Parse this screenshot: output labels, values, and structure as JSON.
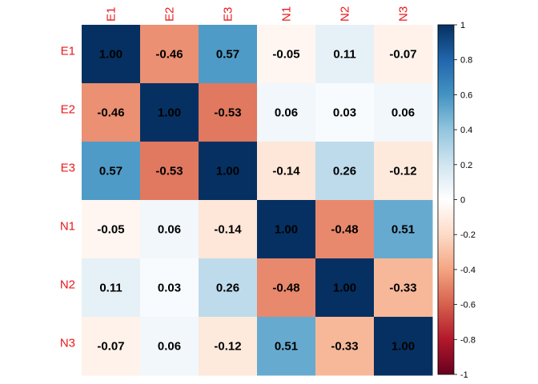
{
  "chart_data": {
    "type": "heatmap",
    "title": "",
    "variables": [
      "E1",
      "E2",
      "E3",
      "N1",
      "N2",
      "N3"
    ],
    "rows": [
      "E1",
      "E2",
      "E3",
      "N1",
      "N2",
      "N3"
    ],
    "columns": [
      "E1",
      "E2",
      "E3",
      "N1",
      "N2",
      "N3"
    ],
    "values": [
      [
        1.0,
        -0.46,
        0.57,
        -0.05,
        0.11,
        -0.07
      ],
      [
        -0.46,
        1.0,
        -0.53,
        0.06,
        0.03,
        0.06
      ],
      [
        0.57,
        -0.53,
        1.0,
        -0.14,
        0.26,
        -0.12
      ],
      [
        -0.05,
        0.06,
        -0.14,
        1.0,
        -0.48,
        0.51
      ],
      [
        0.11,
        0.03,
        0.26,
        -0.48,
        1.0,
        -0.33
      ],
      [
        -0.07,
        0.06,
        -0.12,
        0.51,
        -0.33,
        1.0
      ]
    ],
    "value_labels": [
      [
        "1.00",
        "-0.46",
        "0.57",
        "-0.05",
        "0.11",
        "-0.07"
      ],
      [
        "-0.46",
        "1.00",
        "-0.53",
        "0.06",
        "0.03",
        "0.06"
      ],
      [
        "0.57",
        "-0.53",
        "1.00",
        "-0.14",
        "0.26",
        "-0.12"
      ],
      [
        "-0.05",
        "0.06",
        "-0.14",
        "1.00",
        "-0.48",
        "0.51"
      ],
      [
        "0.11",
        "0.03",
        "0.26",
        "-0.48",
        "1.00",
        "-0.33"
      ],
      [
        "-0.07",
        "0.06",
        "-0.12",
        "0.51",
        "-0.33",
        "1.00"
      ]
    ],
    "colorbar": {
      "range": [
        -1,
        1
      ],
      "ticks": [
        "1",
        "0.8",
        "0.6",
        "0.4",
        "0.2",
        "0",
        "-0.2",
        "-0.4",
        "-0.6",
        "-0.8",
        "-1"
      ],
      "tick_values": [
        1,
        0.8,
        0.6,
        0.4,
        0.2,
        0,
        -0.2,
        -0.4,
        -0.6,
        -0.8,
        -1
      ],
      "placement": "right"
    },
    "label_color": "#e8191c",
    "value_text_color": "#000000",
    "palette": [
      "#67001f",
      "#b2182b",
      "#d6604d",
      "#f4a582",
      "#fddbc7",
      "#ffffff",
      "#d1e5f0",
      "#92c5de",
      "#4393c3",
      "#2166ac",
      "#053061"
    ],
    "grid": false
  }
}
